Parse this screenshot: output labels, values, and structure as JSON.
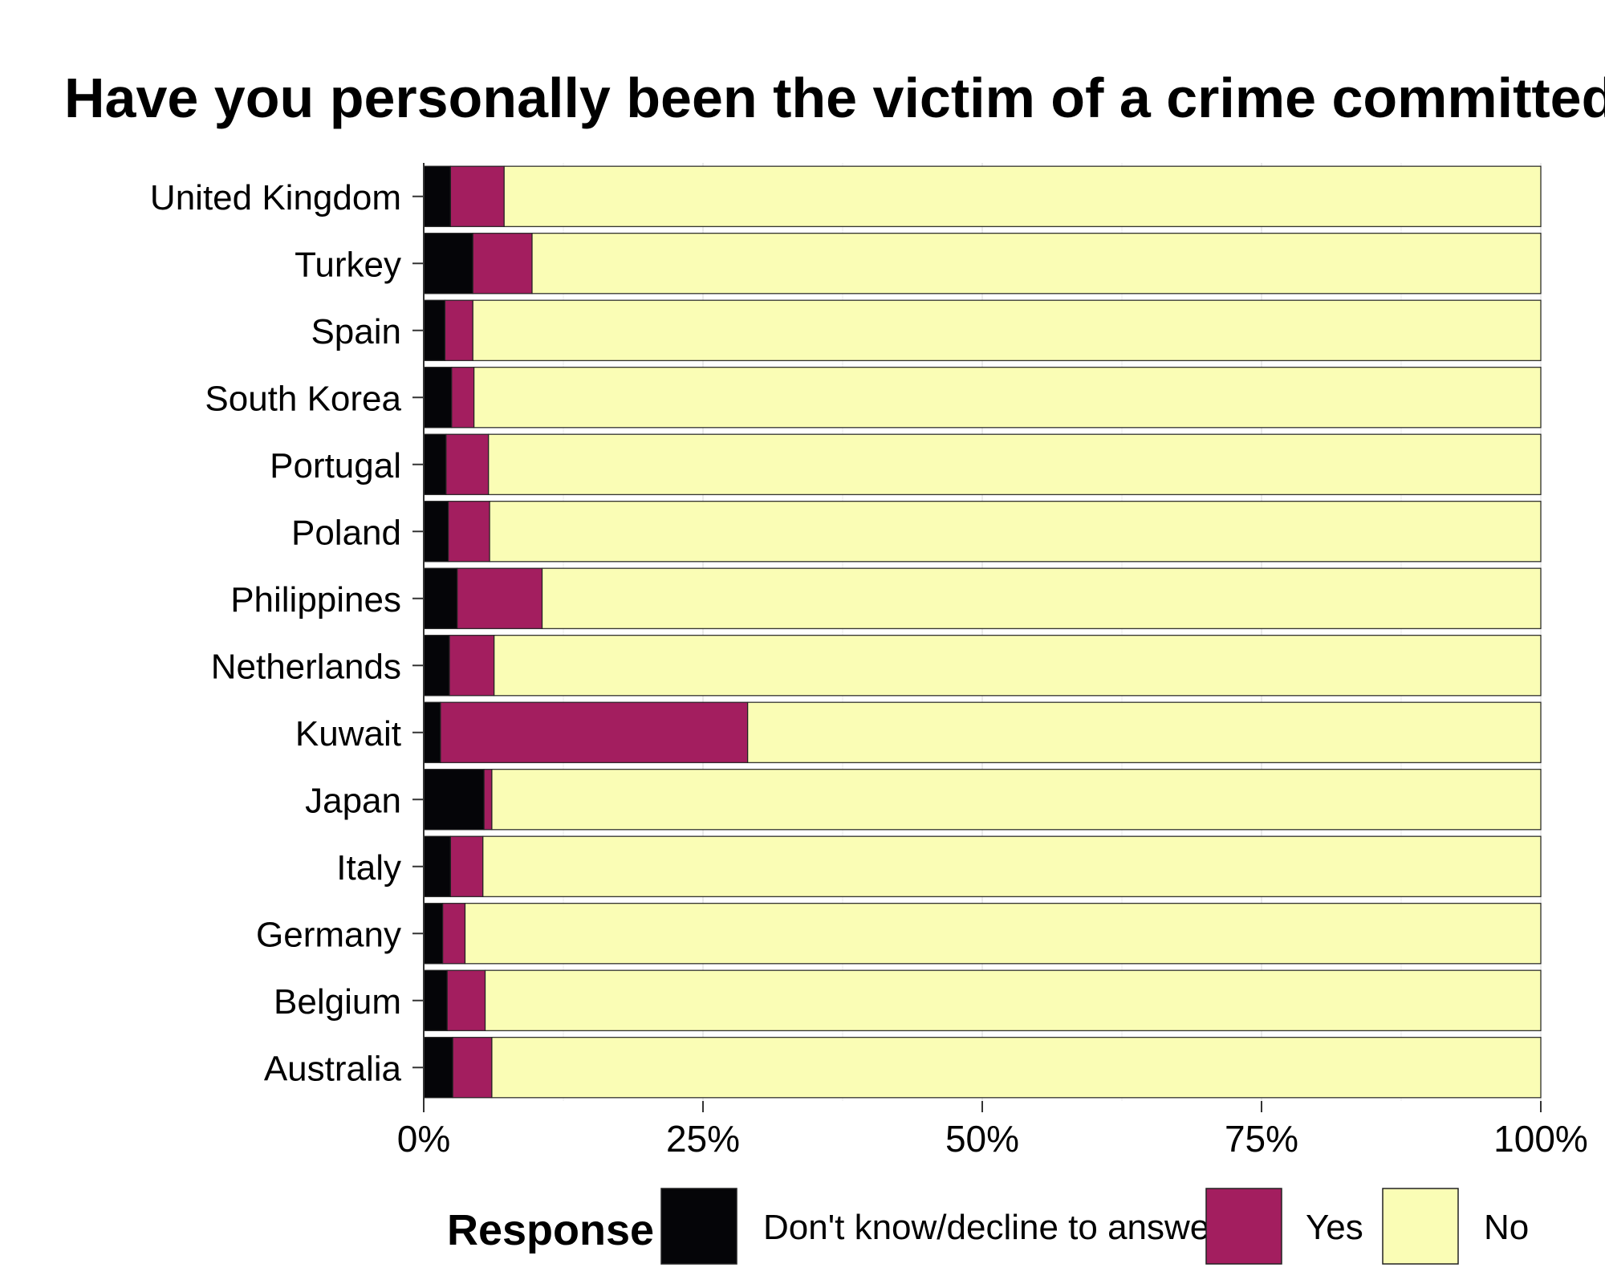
{
  "chart_data": {
    "type": "bar",
    "orientation": "horizontal",
    "stacked": true,
    "normalized": true,
    "title": "Have you personally been the victim of a crime committed b",
    "xlabel": "",
    "ylabel": "",
    "xlim": [
      0,
      100
    ],
    "x_ticks": [
      "0%",
      "25%",
      "50%",
      "75%",
      "100%"
    ],
    "grid": true,
    "legend_position": "bottom",
    "legend_title": "Response",
    "categories": [
      "United Kingdom",
      "Turkey",
      "Spain",
      "South Korea",
      "Portugal",
      "Poland",
      "Philippines",
      "Netherlands",
      "Kuwait",
      "Japan",
      "Italy",
      "Germany",
      "Belgium",
      "Australia"
    ],
    "series": [
      {
        "name": "Don't know/decline to answer",
        "color": "#050508",
        "values": [
          2.4,
          4.4,
          1.9,
          2.5,
          2.0,
          2.2,
          3.0,
          2.3,
          1.5,
          5.4,
          2.4,
          1.7,
          2.1,
          2.6
        ]
      },
      {
        "name": "Yes",
        "color": "#a31e5f",
        "values": [
          4.8,
          5.3,
          2.5,
          2.0,
          3.8,
          3.7,
          7.6,
          4.0,
          27.5,
          0.7,
          2.9,
          2.0,
          3.4,
          3.5
        ]
      },
      {
        "name": "No",
        "color": "#fafdb5",
        "values": [
          92.8,
          90.3,
          95.6,
          95.5,
          94.2,
          94.1,
          89.4,
          93.7,
          71.0,
          93.9,
          94.7,
          96.3,
          94.5,
          93.9
        ]
      }
    ]
  }
}
